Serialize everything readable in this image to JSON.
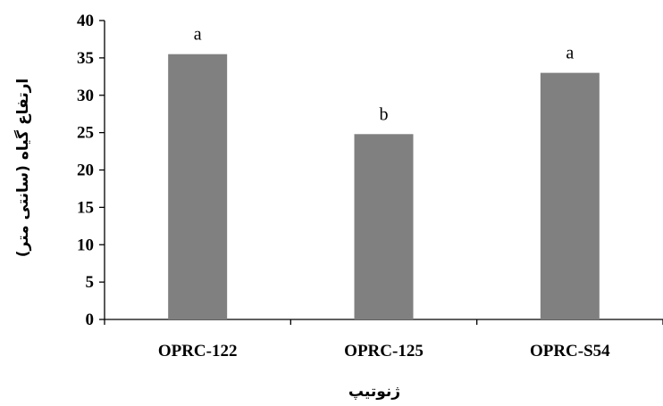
{
  "chart_data": {
    "type": "bar",
    "categories": [
      "OPRC-122",
      "OPRC-125",
      "OPRC-S54"
    ],
    "values": [
      35.5,
      24.8,
      33.0
    ],
    "significance_letters": [
      "a",
      "b",
      "a"
    ],
    "xlabel": "ژنوتیپ",
    "ylabel": "ارتفاع گیاه (سانتی متر)",
    "ylim": [
      0,
      40
    ],
    "yticks": [
      0,
      5,
      10,
      15,
      20,
      25,
      30,
      35,
      40
    ],
    "grid": false,
    "legend": "none",
    "bar_color": "#808080"
  }
}
